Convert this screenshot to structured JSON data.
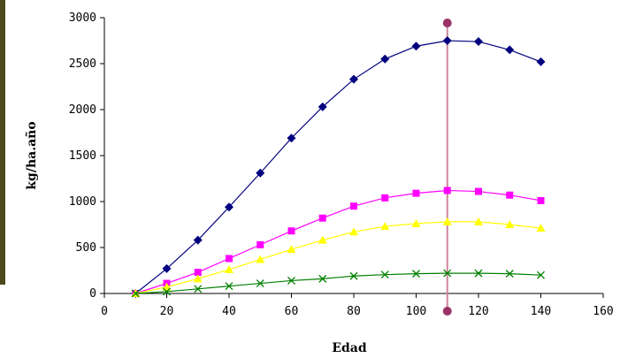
{
  "chart_data": {
    "type": "line",
    "title": "",
    "xlabel": "Edad",
    "ylabel": "kg/ha.año",
    "xlim": [
      0,
      160
    ],
    "ylim": [
      0,
      3000
    ],
    "xticks": [
      0,
      20,
      40,
      60,
      80,
      100,
      120,
      140,
      160
    ],
    "yticks": [
      0,
      500,
      1000,
      1500,
      2000,
      2500,
      3000
    ],
    "grid": false,
    "legend": "none",
    "x": [
      10,
      20,
      30,
      40,
      50,
      60,
      70,
      80,
      90,
      100,
      110,
      120,
      130,
      140
    ],
    "series": [
      {
        "color": "#00007f",
        "marker": "diamond",
        "values": [
          0,
          270,
          580,
          940,
          1310,
          1690,
          2030,
          2330,
          2550,
          2690,
          2750,
          2740,
          2650,
          2520
        ]
      },
      {
        "color": "#ff00ff",
        "marker": "square",
        "values": [
          0,
          110,
          230,
          380,
          530,
          680,
          820,
          950,
          1040,
          1090,
          1120,
          1110,
          1070,
          1010
        ]
      },
      {
        "color": "#ffff00",
        "marker": "triangle",
        "values": [
          0,
          70,
          160,
          260,
          370,
          480,
          580,
          670,
          730,
          760,
          780,
          780,
          750,
          710
        ]
      },
      {
        "color": "#008000",
        "marker": "x",
        "values": [
          0,
          20,
          50,
          80,
          110,
          140,
          160,
          190,
          205,
          215,
          220,
          220,
          215,
          200
        ]
      }
    ],
    "reference_line": {
      "x": 110,
      "color": "#cc8899",
      "end_marker_color": "#993366"
    }
  }
}
